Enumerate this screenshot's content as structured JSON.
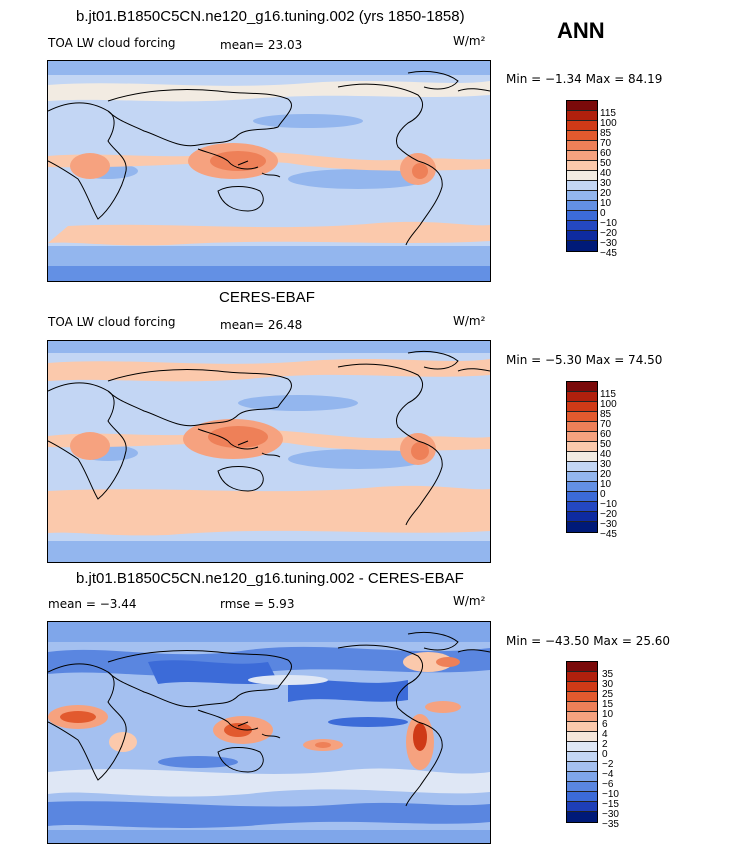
{
  "season": "ANN",
  "units": "W/m²",
  "panels": [
    {
      "title": "b.jt01.B1850C5CN.ne120_g16.tuning.002 (yrs 1850-1858)",
      "left_label": "TOA LW cloud forcing",
      "stat": "mean=  23.03",
      "minmax": "Min =  −1.34 Max =  84.19",
      "levels": [
        "115",
        "100",
        "85",
        "70",
        "60",
        "50",
        "40",
        "30",
        "20",
        "10",
        "0",
        "−10",
        "−20",
        "−30",
        "−45"
      ]
    },
    {
      "title": "CERES-EBAF",
      "left_label": "TOA LW cloud forcing",
      "stat": "mean=  26.48",
      "minmax": "Min =  −5.30 Max =  74.50",
      "levels": [
        "115",
        "100",
        "85",
        "70",
        "60",
        "50",
        "40",
        "30",
        "20",
        "10",
        "0",
        "−10",
        "−20",
        "−30",
        "−45"
      ]
    },
    {
      "title": "b.jt01.B1850C5CN.ne120_g16.tuning.002 - CERES-EBAF",
      "left_label": "mean =  −3.44",
      "stat": "rmse =   5.93",
      "minmax": "Min = −43.50 Max =  25.60",
      "levels": [
        "35",
        "30",
        "25",
        "15",
        "10",
        "6",
        "4",
        "2",
        "0",
        "−2",
        "−4",
        "−6",
        "−10",
        "−15",
        "−30",
        "−35"
      ]
    }
  ],
  "colors": {
    "abs_scale": [
      "#7a0a0a",
      "#b0200d",
      "#cf3a17",
      "#e25a2e",
      "#ee8058",
      "#f6a27f",
      "#fbc9ac",
      "#f2ebe2",
      "#c3d6f4",
      "#93b6ee",
      "#6390e4",
      "#3c6bd8",
      "#2448c2",
      "#0e2ba0",
      "#001a78"
    ],
    "diff_scale": [
      "#7a0a0a",
      "#b0200d",
      "#cf3a17",
      "#e25a2e",
      "#ee8058",
      "#f6a27f",
      "#fbc9ac",
      "#f5e6da",
      "#dfe7f5",
      "#c3d6f4",
      "#a4c0f0",
      "#7fa6ea",
      "#5a86e0",
      "#3c6bd8",
      "#1e3fb8",
      "#001a78"
    ]
  }
}
